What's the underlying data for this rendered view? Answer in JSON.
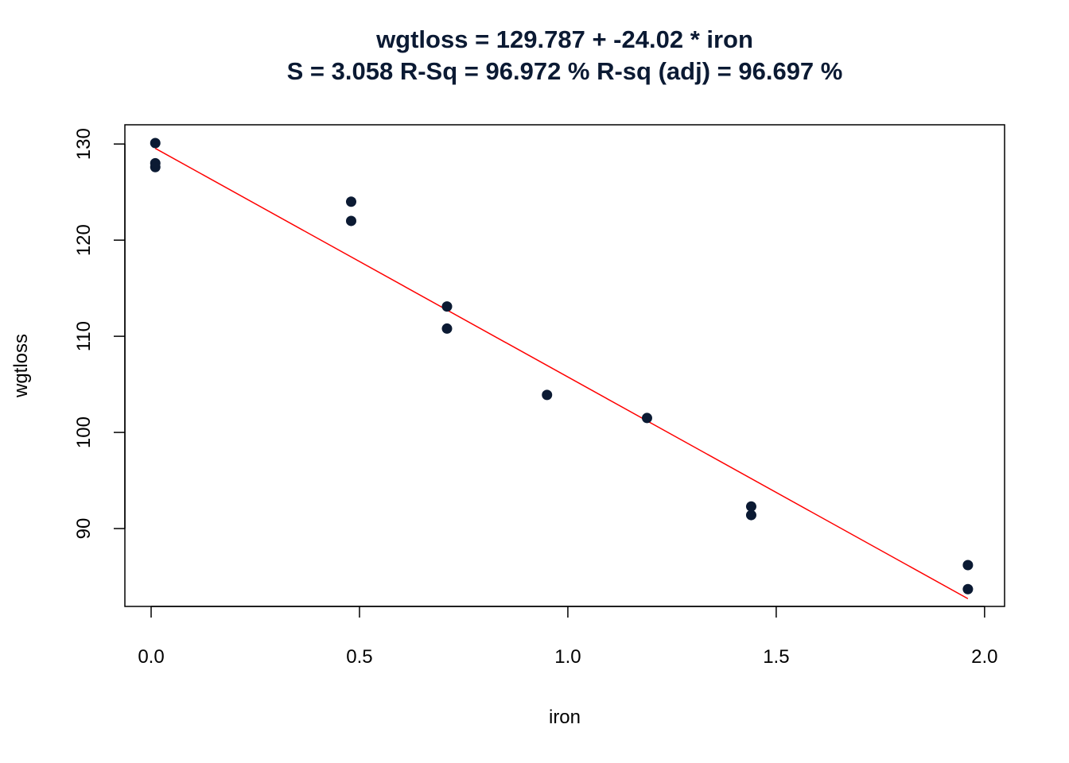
{
  "chart_data": {
    "type": "scatter",
    "title": "wgtloss = 129.787 + -24.02 * iron",
    "subtitle": "S = 3.058   R-Sq = 96.972 %  R-sq (adj) = 96.697 %",
    "xlabel": "iron",
    "ylabel": "wgtloss",
    "xlim": [
      -0.063,
      2.048
    ],
    "ylim": [
      81.9,
      132.0
    ],
    "xticks": [
      "0.0",
      "0.5",
      "1.0",
      "1.5",
      "2.0"
    ],
    "yticks": [
      "90",
      "100",
      "110",
      "120",
      "130"
    ],
    "grid": false,
    "x": [
      0.01,
      0.48,
      0.71,
      0.95,
      1.19,
      0.01,
      0.48,
      1.44,
      0.71,
      1.96,
      0.01,
      1.44,
      1.96
    ],
    "y": [
      127.6,
      124.0,
      110.8,
      103.9,
      101.5,
      130.1,
      122.0,
      92.3,
      113.1,
      83.7,
      128.0,
      91.4,
      86.2
    ],
    "fit": {
      "intercept": 129.787,
      "slope": -24.02,
      "x_range": [
        0.01,
        1.96
      ]
    },
    "colors": {
      "points": "#0b1a33",
      "fit_line": "#ff0000"
    }
  }
}
